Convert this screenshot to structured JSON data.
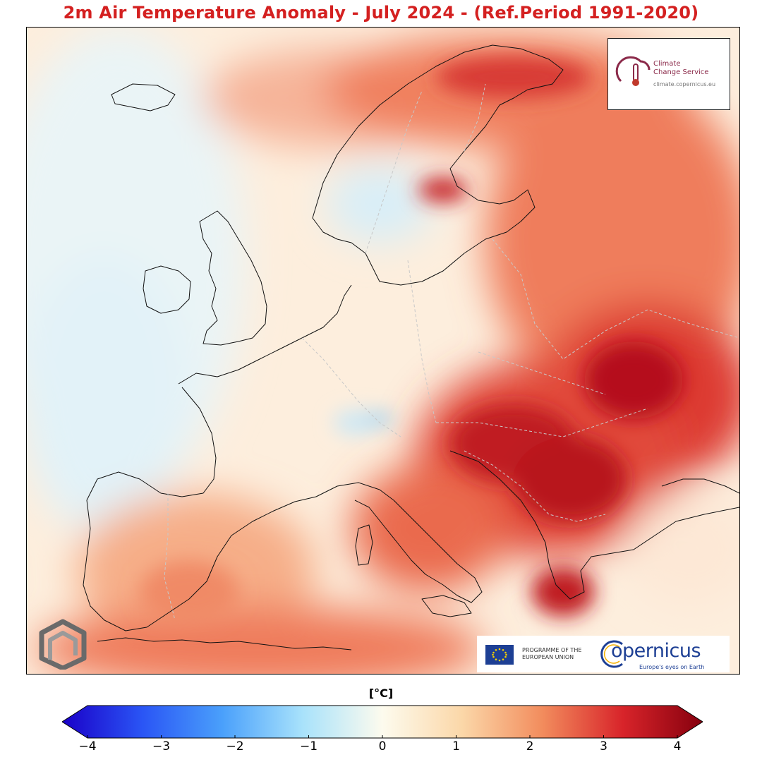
{
  "title": "2m Air Temperature Anomaly - July 2024 - (Ref.Period 1991-2020)",
  "colorbar": {
    "unit": "[°C]",
    "min": -4,
    "max": 4,
    "ticks": [
      "−4",
      "−3",
      "−2",
      "−1",
      "0",
      "1",
      "2",
      "3",
      "4"
    ],
    "tick_values": [
      -4,
      -3,
      -2,
      -1,
      0,
      1,
      2,
      3,
      4
    ],
    "colors": [
      "#1a00c8",
      "#2a55f5",
      "#4aa0fb",
      "#a8e2fb",
      "#fdfbee",
      "#fbd7a8",
      "#f28c5d",
      "#d8242a",
      "#86000e"
    ]
  },
  "logos": {
    "cams_line1": "Climate",
    "cams_line2": "Change Service",
    "cams_url": "climate.copernicus.eu",
    "eu_line1": "PROGRAMME OF THE",
    "eu_line2": "EUROPEAN UNION",
    "copernicus": "opernicus",
    "copernicus_tagline": "Europe's eyes on Earth"
  }
}
